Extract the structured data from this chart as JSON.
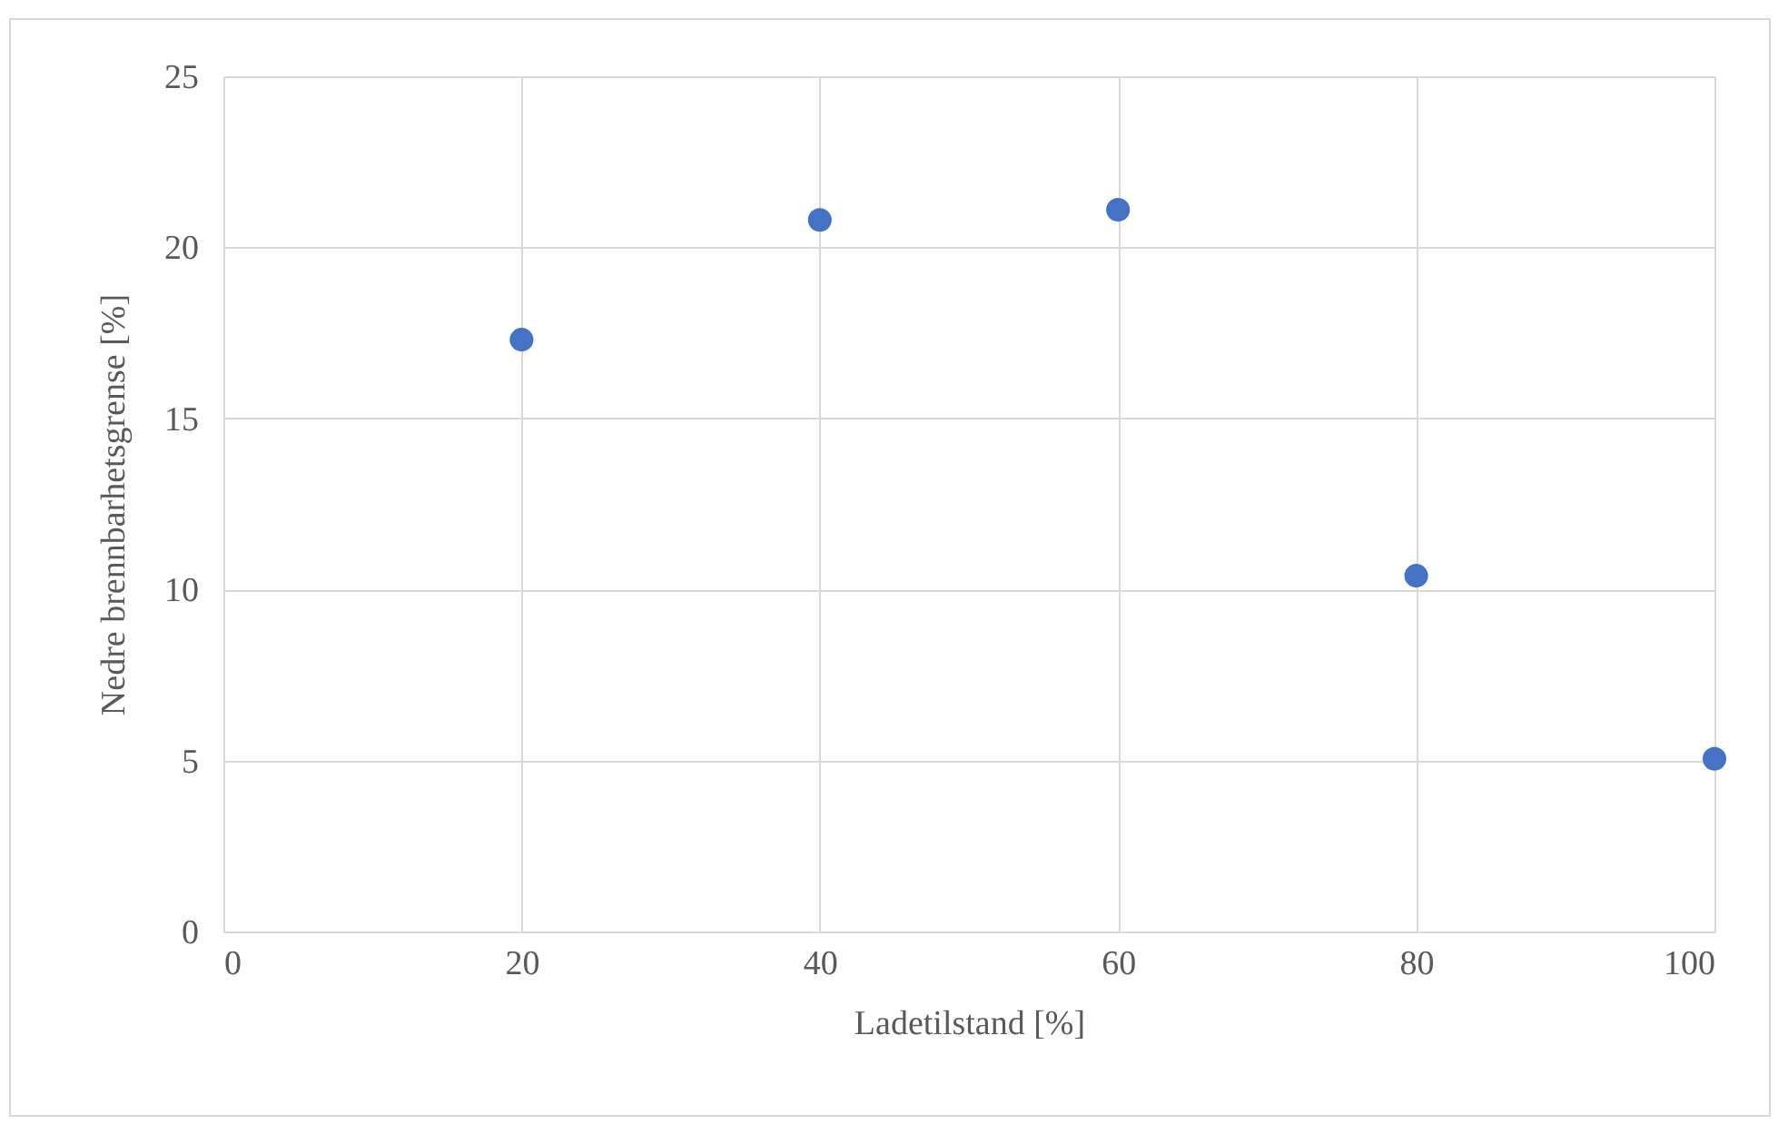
{
  "chart_data": {
    "type": "scatter",
    "xlabel": "Ladetilstand [%]",
    "ylabel": "Nedre brennbarhetsgrense [%]",
    "x": [
      20,
      40,
      60,
      80,
      100
    ],
    "series": [
      {
        "color": "#4472c4",
        "values": [
          17.3,
          20.8,
          21.1,
          10.4,
          5.05
        ]
      }
    ],
    "xlim": [
      0,
      100
    ],
    "xticks": [
      0,
      20,
      40,
      60,
      80,
      100
    ],
    "ylim": [
      0,
      25
    ],
    "yticks": [
      0,
      5,
      10,
      15,
      20,
      25
    ],
    "grid": true,
    "marker": "circle"
  }
}
